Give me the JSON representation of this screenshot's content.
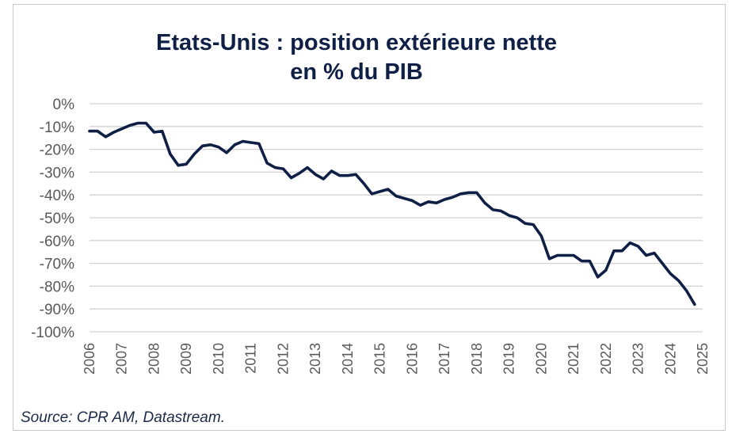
{
  "chart_data": {
    "type": "line",
    "title_line1": "Etats-Unis : position extérieure nette",
    "title_line2": "en % du PIB",
    "xlabel": "",
    "ylabel": "",
    "xlim": [
      2006,
      2025
    ],
    "ylim": [
      -100,
      0
    ],
    "y_ticks": [
      0,
      -10,
      -20,
      -30,
      -40,
      -50,
      -60,
      -70,
      -80,
      -90,
      -100
    ],
    "y_tick_labels": [
      "0%",
      "-10%",
      "-20%",
      "-30%",
      "-40%",
      "-50%",
      "-60%",
      "-70%",
      "-80%",
      "-90%",
      "-100%"
    ],
    "x_tick_labels": [
      "2006",
      "2007",
      "2008",
      "2009",
      "2010",
      "2011",
      "2012",
      "2013",
      "2014",
      "2015",
      "2016",
      "2017",
      "2018",
      "2019",
      "2020",
      "2021",
      "2022",
      "2023",
      "2024",
      "2025"
    ],
    "grid": true,
    "line_color": "#0f1f45",
    "series": [
      {
        "x": [
          2006.0,
          2006.25,
          2006.5,
          2006.75,
          2007.0,
          2007.25,
          2007.5,
          2007.75,
          2008.0,
          2008.25,
          2008.5,
          2008.75,
          2009.0,
          2009.25,
          2009.5,
          2009.75,
          2010.0,
          2010.25,
          2010.5,
          2010.75,
          2011.0,
          2011.25,
          2011.5,
          2011.75,
          2012.0,
          2012.25,
          2012.5,
          2012.75,
          2013.0,
          2013.25,
          2013.5,
          2013.75,
          2014.0,
          2014.25,
          2014.5,
          2014.75,
          2015.0,
          2015.25,
          2015.5,
          2015.75,
          2016.0,
          2016.25,
          2016.5,
          2016.75,
          2017.0,
          2017.25,
          2017.5,
          2017.75,
          2018.0,
          2018.25,
          2018.5,
          2018.75,
          2019.0,
          2019.25,
          2019.5,
          2019.75,
          2020.0,
          2020.25,
          2020.5,
          2020.75,
          2021.0,
          2021.25,
          2021.5,
          2021.75,
          2022.0,
          2022.25,
          2022.5,
          2022.75,
          2023.0,
          2023.25,
          2023.5,
          2023.75,
          2024.0,
          2024.25,
          2024.5,
          2024.75
        ],
        "values": [
          -12,
          -12,
          -14.5,
          -12.5,
          -11,
          -9.5,
          -8.5,
          -8.5,
          -12.5,
          -12,
          -22,
          -27,
          -26.5,
          -22,
          -18.5,
          -18,
          -19,
          -21.5,
          -18,
          -16.5,
          -17,
          -17.5,
          -26,
          -28,
          -28.5,
          -32.5,
          -30.5,
          -28,
          -31,
          -33,
          -29.5,
          -31.5,
          -31.5,
          -31,
          -35,
          -39.5,
          -38.5,
          -37.5,
          -40.5,
          -41.5,
          -42.5,
          -44.5,
          -43,
          -43.5,
          -42,
          -41,
          -39.5,
          -39,
          -39,
          -43.5,
          -46.5,
          -47,
          -49,
          -50,
          -52.5,
          -53,
          -58,
          -68,
          -66.5,
          -66.5,
          -66.5,
          -69,
          -69,
          -76,
          -73,
          -64.5,
          -64.5,
          -61,
          -62.5,
          -66.5,
          -65.5,
          -70,
          -74.5,
          -77.5,
          -82,
          -88
        ]
      }
    ]
  },
  "source": "Source: CPR AM, Datastream."
}
